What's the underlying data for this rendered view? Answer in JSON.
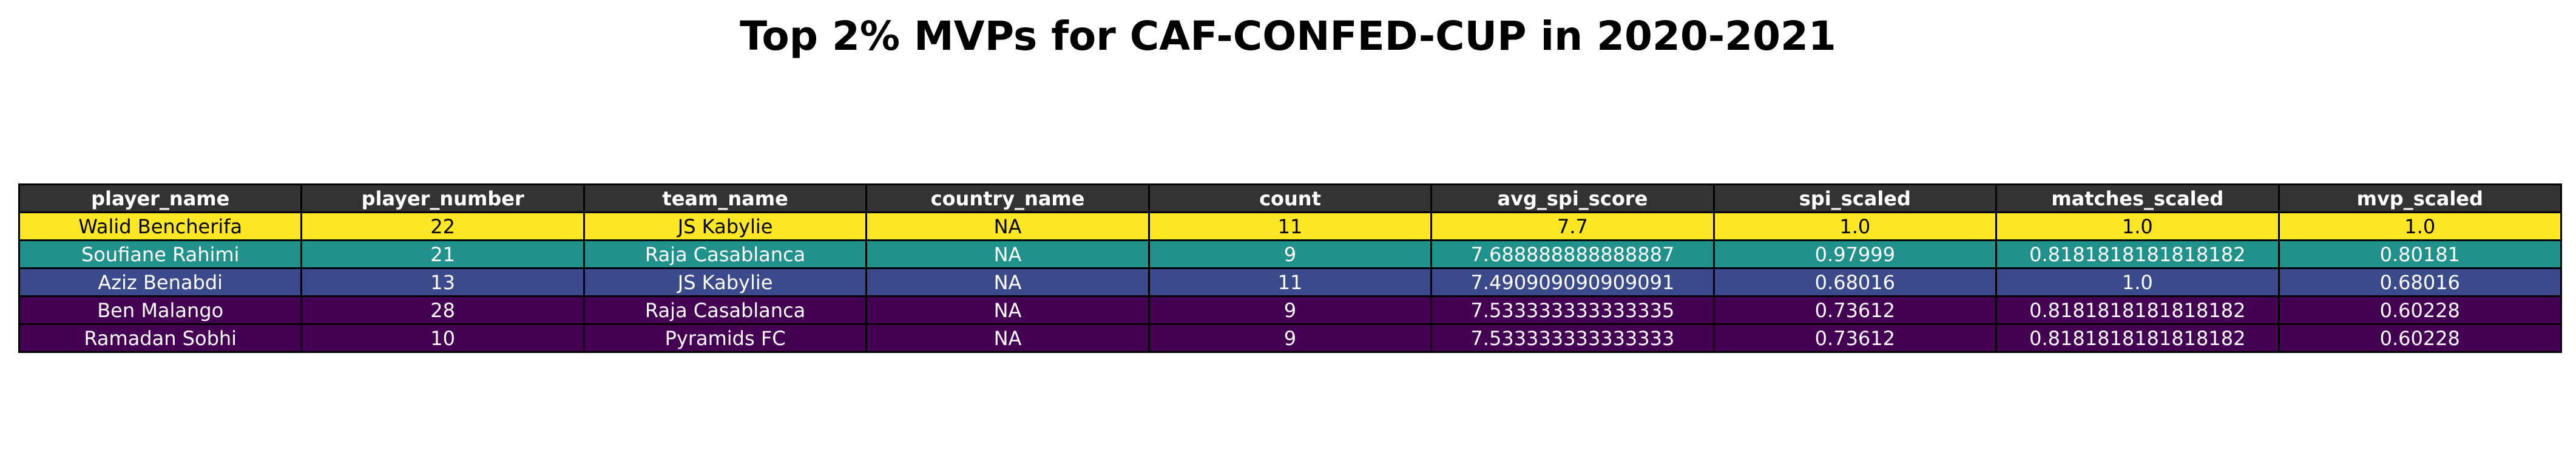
{
  "chart_data": {
    "type": "table",
    "title": "Top 2% MVPs for CAF-CONFED-CUP in 2020-2021",
    "columns": [
      "player_name",
      "player_number",
      "team_name",
      "country_name",
      "count",
      "avg_spi_score",
      "spi_scaled",
      "matches_scaled",
      "mvp_scaled"
    ],
    "rows": [
      [
        "Walid Bencherifa",
        "22",
        "JS Kabylie",
        "NA",
        "11",
        "7.7",
        "1.0",
        "1.0",
        "1.0"
      ],
      [
        "Soufiane Rahimi",
        "21",
        "Raja Casablanca",
        "NA",
        "9",
        "7.688888888888887",
        "0.97999",
        "0.8181818181818182",
        "0.80181"
      ],
      [
        "Aziz Benabdi",
        "13",
        "JS Kabylie",
        "NA",
        "11",
        "7.490909090909091",
        "0.68016",
        "1.0",
        "0.68016"
      ],
      [
        "Ben Malango",
        "28",
        "Raja Casablanca",
        "NA",
        "9",
        "7.533333333333335",
        "0.73612",
        "0.8181818181818182",
        "0.60228"
      ],
      [
        "Ramadan Sobhi",
        "10",
        "Pyramids FC",
        "NA",
        "9",
        "7.533333333333333",
        "0.73612",
        "0.8181818181818182",
        "0.60228"
      ]
    ],
    "row_colors": [
      "#fde725",
      "#21918c",
      "#3b4a8a",
      "#440154",
      "#440154"
    ],
    "row_text_colors": [
      "#000000",
      "#ffffff",
      "#ffffff",
      "#ffffff",
      "#ffffff"
    ],
    "header_color": "#333333",
    "header_text_color": "#ffffff"
  }
}
